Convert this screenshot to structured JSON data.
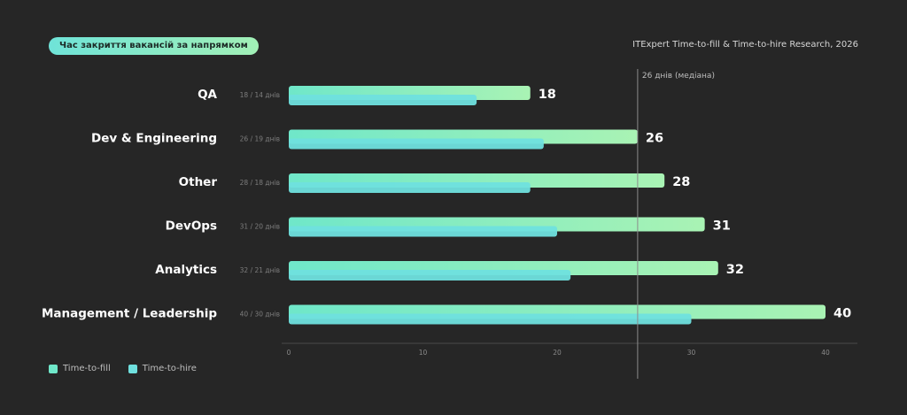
{
  "header": {
    "pill_label": "Час закриття вакансій за напрямком",
    "source": "ITExpert Time-to-fill & Time-to-hire Research, 2026"
  },
  "colors": {
    "fill_start": "#6fe7c9",
    "fill_end": "#a9f3b4",
    "hire": "#6fe0de",
    "background": "#262626"
  },
  "chart_data": {
    "type": "bar",
    "orientation": "horizontal",
    "categories": [
      "QA",
      "Dev & Engineering",
      "Other",
      "DevOps",
      "Analytics",
      "Management / Leadership"
    ],
    "category_notes": [
      "18 / 14 днів",
      "26 / 19 днів",
      "28 / 18 днів",
      "31 / 20 днів",
      "32 / 21 днів",
      "40 / 30 днів"
    ],
    "series": [
      {
        "name": "Time-to-fill",
        "values": [
          18,
          26,
          28,
          31,
          32,
          40
        ],
        "value_labels": [
          "18",
          "26",
          "28",
          "31",
          "32",
          "40"
        ]
      },
      {
        "name": "Time-to-hire",
        "values": [
          14,
          19,
          18,
          20,
          21,
          30
        ]
      }
    ],
    "xlim": [
      0,
      40
    ],
    "xticks": [
      "0",
      "10",
      "20",
      "30",
      "40"
    ],
    "reference_line": {
      "value": 26,
      "label": "26 днів (медіана)"
    },
    "legend": {
      "position": "bottom-left"
    },
    "grid": false
  }
}
